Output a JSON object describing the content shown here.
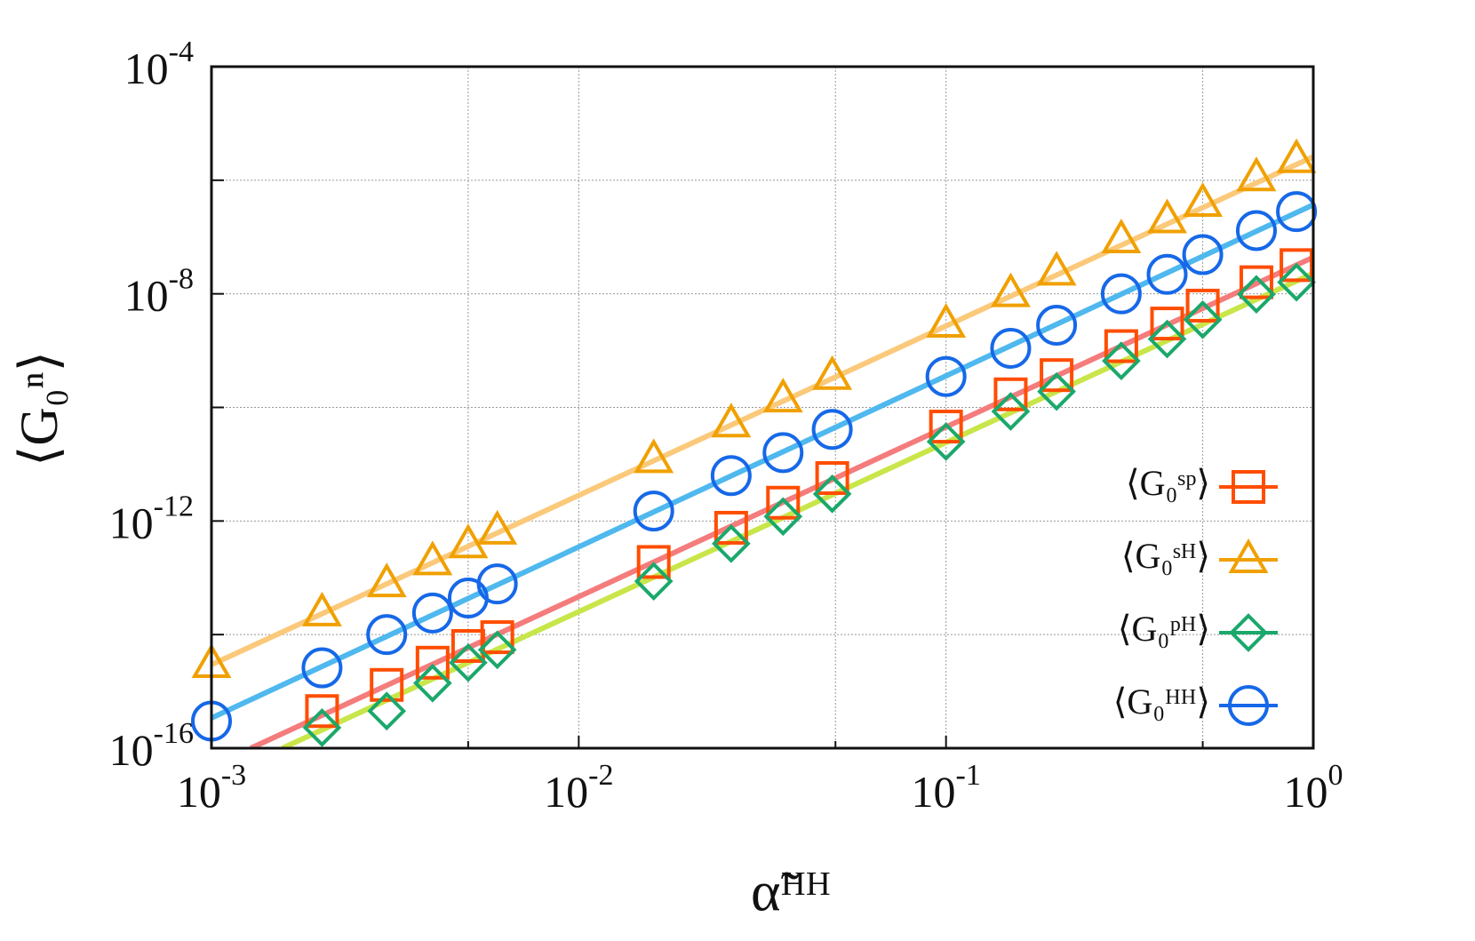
{
  "chart_data": {
    "type": "scatter",
    "log_x": true,
    "log_y": true,
    "grid": true,
    "legend": "right",
    "xlabel": "α̃ᴴᴴ",
    "ylabel": "⟨G₀ⁿ⟩",
    "xlim": [
      0.001,
      1
    ],
    "ylim": [
      1e-16,
      0.0001
    ],
    "xticks": [
      {
        "value": 0.001,
        "label": "10",
        "exponent": "-3"
      },
      {
        "value": 0.01,
        "label": "10",
        "exponent": "-2"
      },
      {
        "value": 0.1,
        "label": "10",
        "exponent": "-1"
      },
      {
        "value": 1,
        "label": "10",
        "exponent": "0"
      }
    ],
    "xgrid": [
      0.005,
      0.05,
      0.5
    ],
    "yticks": [
      {
        "value": 1e-16,
        "label": "10",
        "exponent": "-16"
      },
      {
        "value": 1e-12,
        "label": "10",
        "exponent": "-12"
      },
      {
        "value": 1e-08,
        "label": "10",
        "exponent": "-8"
      },
      {
        "value": 0.0001,
        "label": "10",
        "exponent": "-4"
      }
    ],
    "ygrid": [
      1e-14,
      1e-10,
      1e-06
    ],
    "series": [
      {
        "name": "⟨G₀ˢᵖ⟩",
        "marker": "square",
        "color": "#ff4d00",
        "x": [
          0.002,
          0.003,
          0.004,
          0.005,
          0.006,
          0.016,
          0.026,
          0.036,
          0.049,
          0.1,
          0.15,
          0.2,
          0.3,
          0.4,
          0.5,
          0.7,
          0.9
        ],
        "values": [
          4.5e-16,
          1.3e-15,
          3.2e-15,
          6.3e-15,
          9e-15,
          1.9e-13,
          7.6e-13,
          2.1e-12,
          5.7e-12,
          4.6e-11,
          1.7e-10,
          3.7e-10,
          1.2e-09,
          3e-09,
          6.2e-09,
          1.6e-08,
          3.2e-08
        ],
        "fit": {
          "color": "#f47c7c",
          "x": [
            0.00128,
            1
          ],
          "values": [
            1e-16,
            4.4e-08
          ]
        }
      },
      {
        "name": "⟨G₀ˢᴴ⟩",
        "marker": "triangle",
        "color": "#f0a000",
        "x": [
          0.001,
          0.002,
          0.003,
          0.004,
          0.005,
          0.006,
          0.016,
          0.026,
          0.036,
          0.049,
          0.1,
          0.15,
          0.2,
          0.3,
          0.4,
          0.5,
          0.7,
          0.9
        ],
        "values": [
          2.95e-15,
          2.4e-14,
          7.8e-14,
          1.9e-13,
          3.8e-13,
          6.6e-13,
          1.2e-11,
          5.1e-11,
          1.4e-10,
          3.5e-10,
          2.9e-09,
          1e-08,
          2.4e-08,
          8.9e-08,
          2e-07,
          3.9e-07,
          1.1e-06,
          2.3e-06
        ],
        "fit": {
          "color": "#fbc97a",
          "x": [
            0.001,
            1
          ],
          "values": [
            2.95e-15,
            2.6e-06
          ]
        }
      },
      {
        "name": "⟨G₀ᵖᴴ⟩",
        "marker": "diamond",
        "color": "#1aa86b",
        "x": [
          0.002,
          0.003,
          0.004,
          0.005,
          0.006,
          0.016,
          0.026,
          0.036,
          0.049,
          0.1,
          0.15,
          0.2,
          0.3,
          0.4,
          0.5,
          0.7,
          0.9
        ],
        "values": [
          2.3e-16,
          4.5e-16,
          1.4e-15,
          3.2e-15,
          5.4e-15,
          8.7e-14,
          4e-13,
          1.2e-12,
          3e-12,
          2.5e-11,
          8.5e-11,
          1.9e-10,
          6.6e-10,
          1.6e-09,
          3.5e-09,
          9.8e-09,
          1.6e-08
        ],
        "fit": {
          "color": "#c8e64a",
          "x": [
            0.00156,
            1
          ],
          "values": [
            1e-16,
            2.3e-08
          ]
        }
      },
      {
        "name": "⟨G₀ᴴᴴ⟩",
        "marker": "circle",
        "color": "#1668e8",
        "x": [
          0.001,
          0.002,
          0.003,
          0.004,
          0.005,
          0.006,
          0.016,
          0.026,
          0.036,
          0.049,
          0.1,
          0.15,
          0.2,
          0.3,
          0.4,
          0.5,
          0.7,
          0.9
        ],
        "values": [
          3e-16,
          2.6e-15,
          1e-14,
          2.4e-14,
          4.4e-14,
          7.8e-14,
          1.5e-12,
          6.3e-12,
          1.6e-11,
          4.1e-11,
          3.5e-10,
          1.1e-09,
          2.8e-09,
          1e-08,
          2.2e-08,
          4.9e-08,
          1.3e-07,
          2.8e-07
        ],
        "fit": {
          "color": "#4fb8ee",
          "x": [
            0.001,
            1
          ],
          "values": [
            3.4e-16,
            3.7e-07
          ]
        }
      }
    ]
  }
}
